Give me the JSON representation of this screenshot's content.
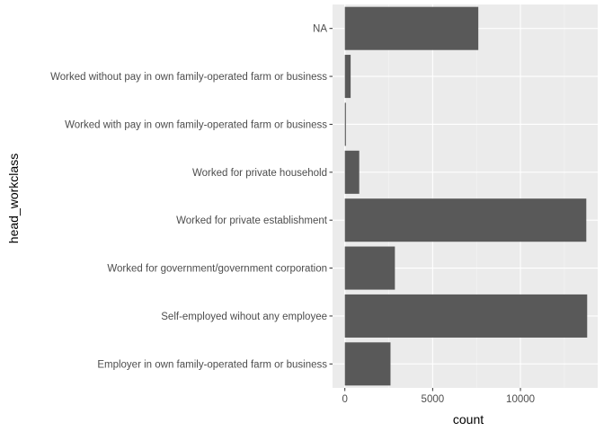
{
  "chart_data": {
    "type": "bar",
    "orientation": "horizontal",
    "categories": [
      "Employer in own family-operated farm or business",
      "Self-employed wihout any employee",
      "Worked for government/government corporation",
      "Worked for private establishment",
      "Worked for private household",
      "Worked with pay in own family-operated farm or business",
      "Worked without pay in own family-operated farm or business",
      "NA"
    ],
    "values": [
      2600,
      13800,
      2850,
      13750,
      820,
      60,
      330,
      7600
    ],
    "xlabel": "count",
    "ylabel": "head_workclass",
    "xlim": [
      -700,
      14400
    ],
    "xticks": [
      0,
      5000,
      10000
    ],
    "xtick_labels": [
      "0",
      "5000",
      "10000"
    ],
    "grid": true,
    "colors": {
      "bar": "#595959",
      "panel_background": "#ebebeb",
      "major_grid": "#ffffff",
      "minor_grid": "#f5f5f5",
      "tick_text": "#4d4d4d",
      "tick_mark": "#333333",
      "title_text": "#000000"
    }
  }
}
